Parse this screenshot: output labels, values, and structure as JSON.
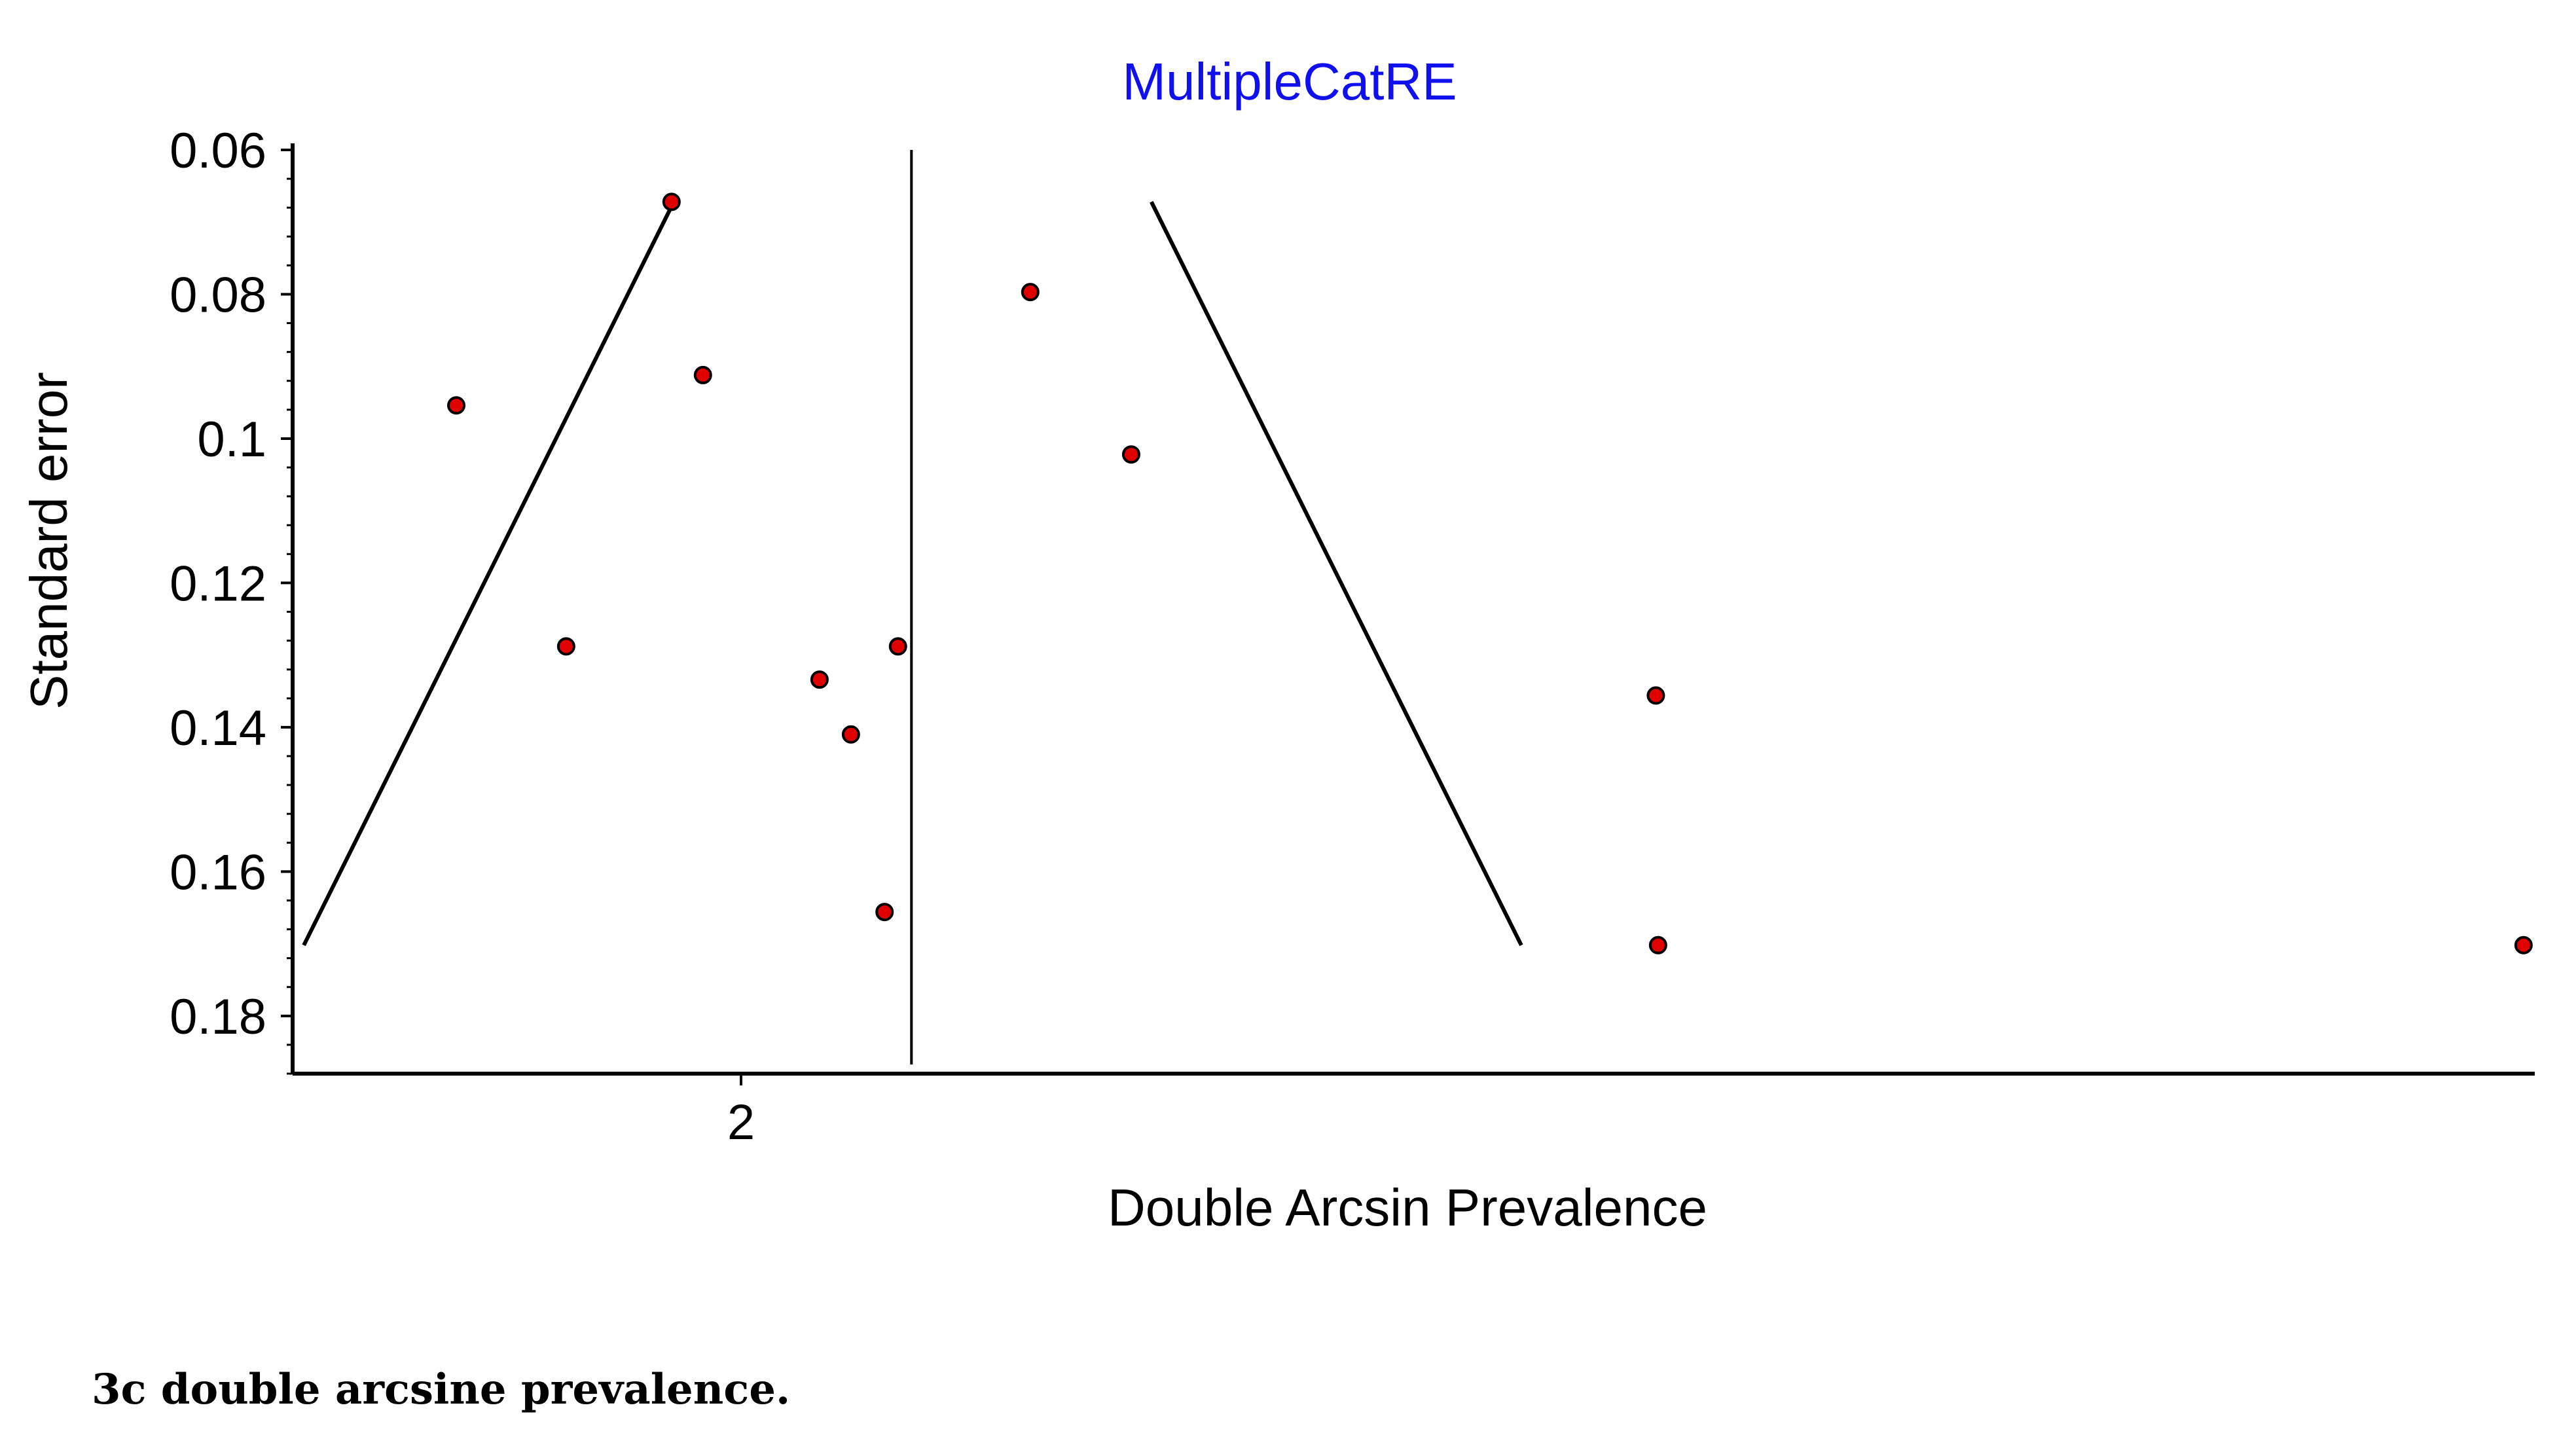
{
  "chart_data": {
    "type": "scatter",
    "title": "MultipleCatRE",
    "xlabel": "Double Arcsin Prevalence",
    "ylabel": "Standard error",
    "xlim": [
      1.8,
      2.8
    ],
    "ylim": [
      0.06,
      0.188
    ],
    "y_inverted": true,
    "xticks": [
      {
        "value": 2,
        "label": "2"
      }
    ],
    "yticks": [
      {
        "value": 0.06,
        "label": "0.06"
      },
      {
        "value": 0.08,
        "label": "0.08"
      },
      {
        "value": 0.1,
        "label": "0.1"
      },
      {
        "value": 0.12,
        "label": "0.12"
      },
      {
        "value": 0.14,
        "label": "0.14"
      },
      {
        "value": 0.16,
        "label": "0.16"
      },
      {
        "value": 0.18,
        "label": "0.18"
      }
    ],
    "pooled_estimate": 2.076,
    "funnel": {
      "se_top": 0.0672,
      "se_bottom": 0.1702,
      "left_top": 1.97,
      "left_bottom": 1.805,
      "right_top": 2.183,
      "right_bottom": 2.348
    },
    "points": [
      {
        "x": 1.873,
        "y": 0.0954
      },
      {
        "x": 1.969,
        "y": 0.0672
      },
      {
        "x": 1.983,
        "y": 0.0912
      },
      {
        "x": 1.922,
        "y": 0.1288
      },
      {
        "x": 2.035,
        "y": 0.1334
      },
      {
        "x": 2.049,
        "y": 0.141
      },
      {
        "x": 2.07,
        "y": 0.1288
      },
      {
        "x": 2.064,
        "y": 0.1656
      },
      {
        "x": 2.129,
        "y": 0.0797
      },
      {
        "x": 2.174,
        "y": 0.1022
      },
      {
        "x": 2.408,
        "y": 0.1356
      },
      {
        "x": 2.409,
        "y": 0.1702
      },
      {
        "x": 2.795,
        "y": 0.1702
      }
    ],
    "colors": {
      "points": "#e00000",
      "title": "#1010ee",
      "lines": "#000000"
    }
  },
  "caption": "3c double arcsine prevalence."
}
